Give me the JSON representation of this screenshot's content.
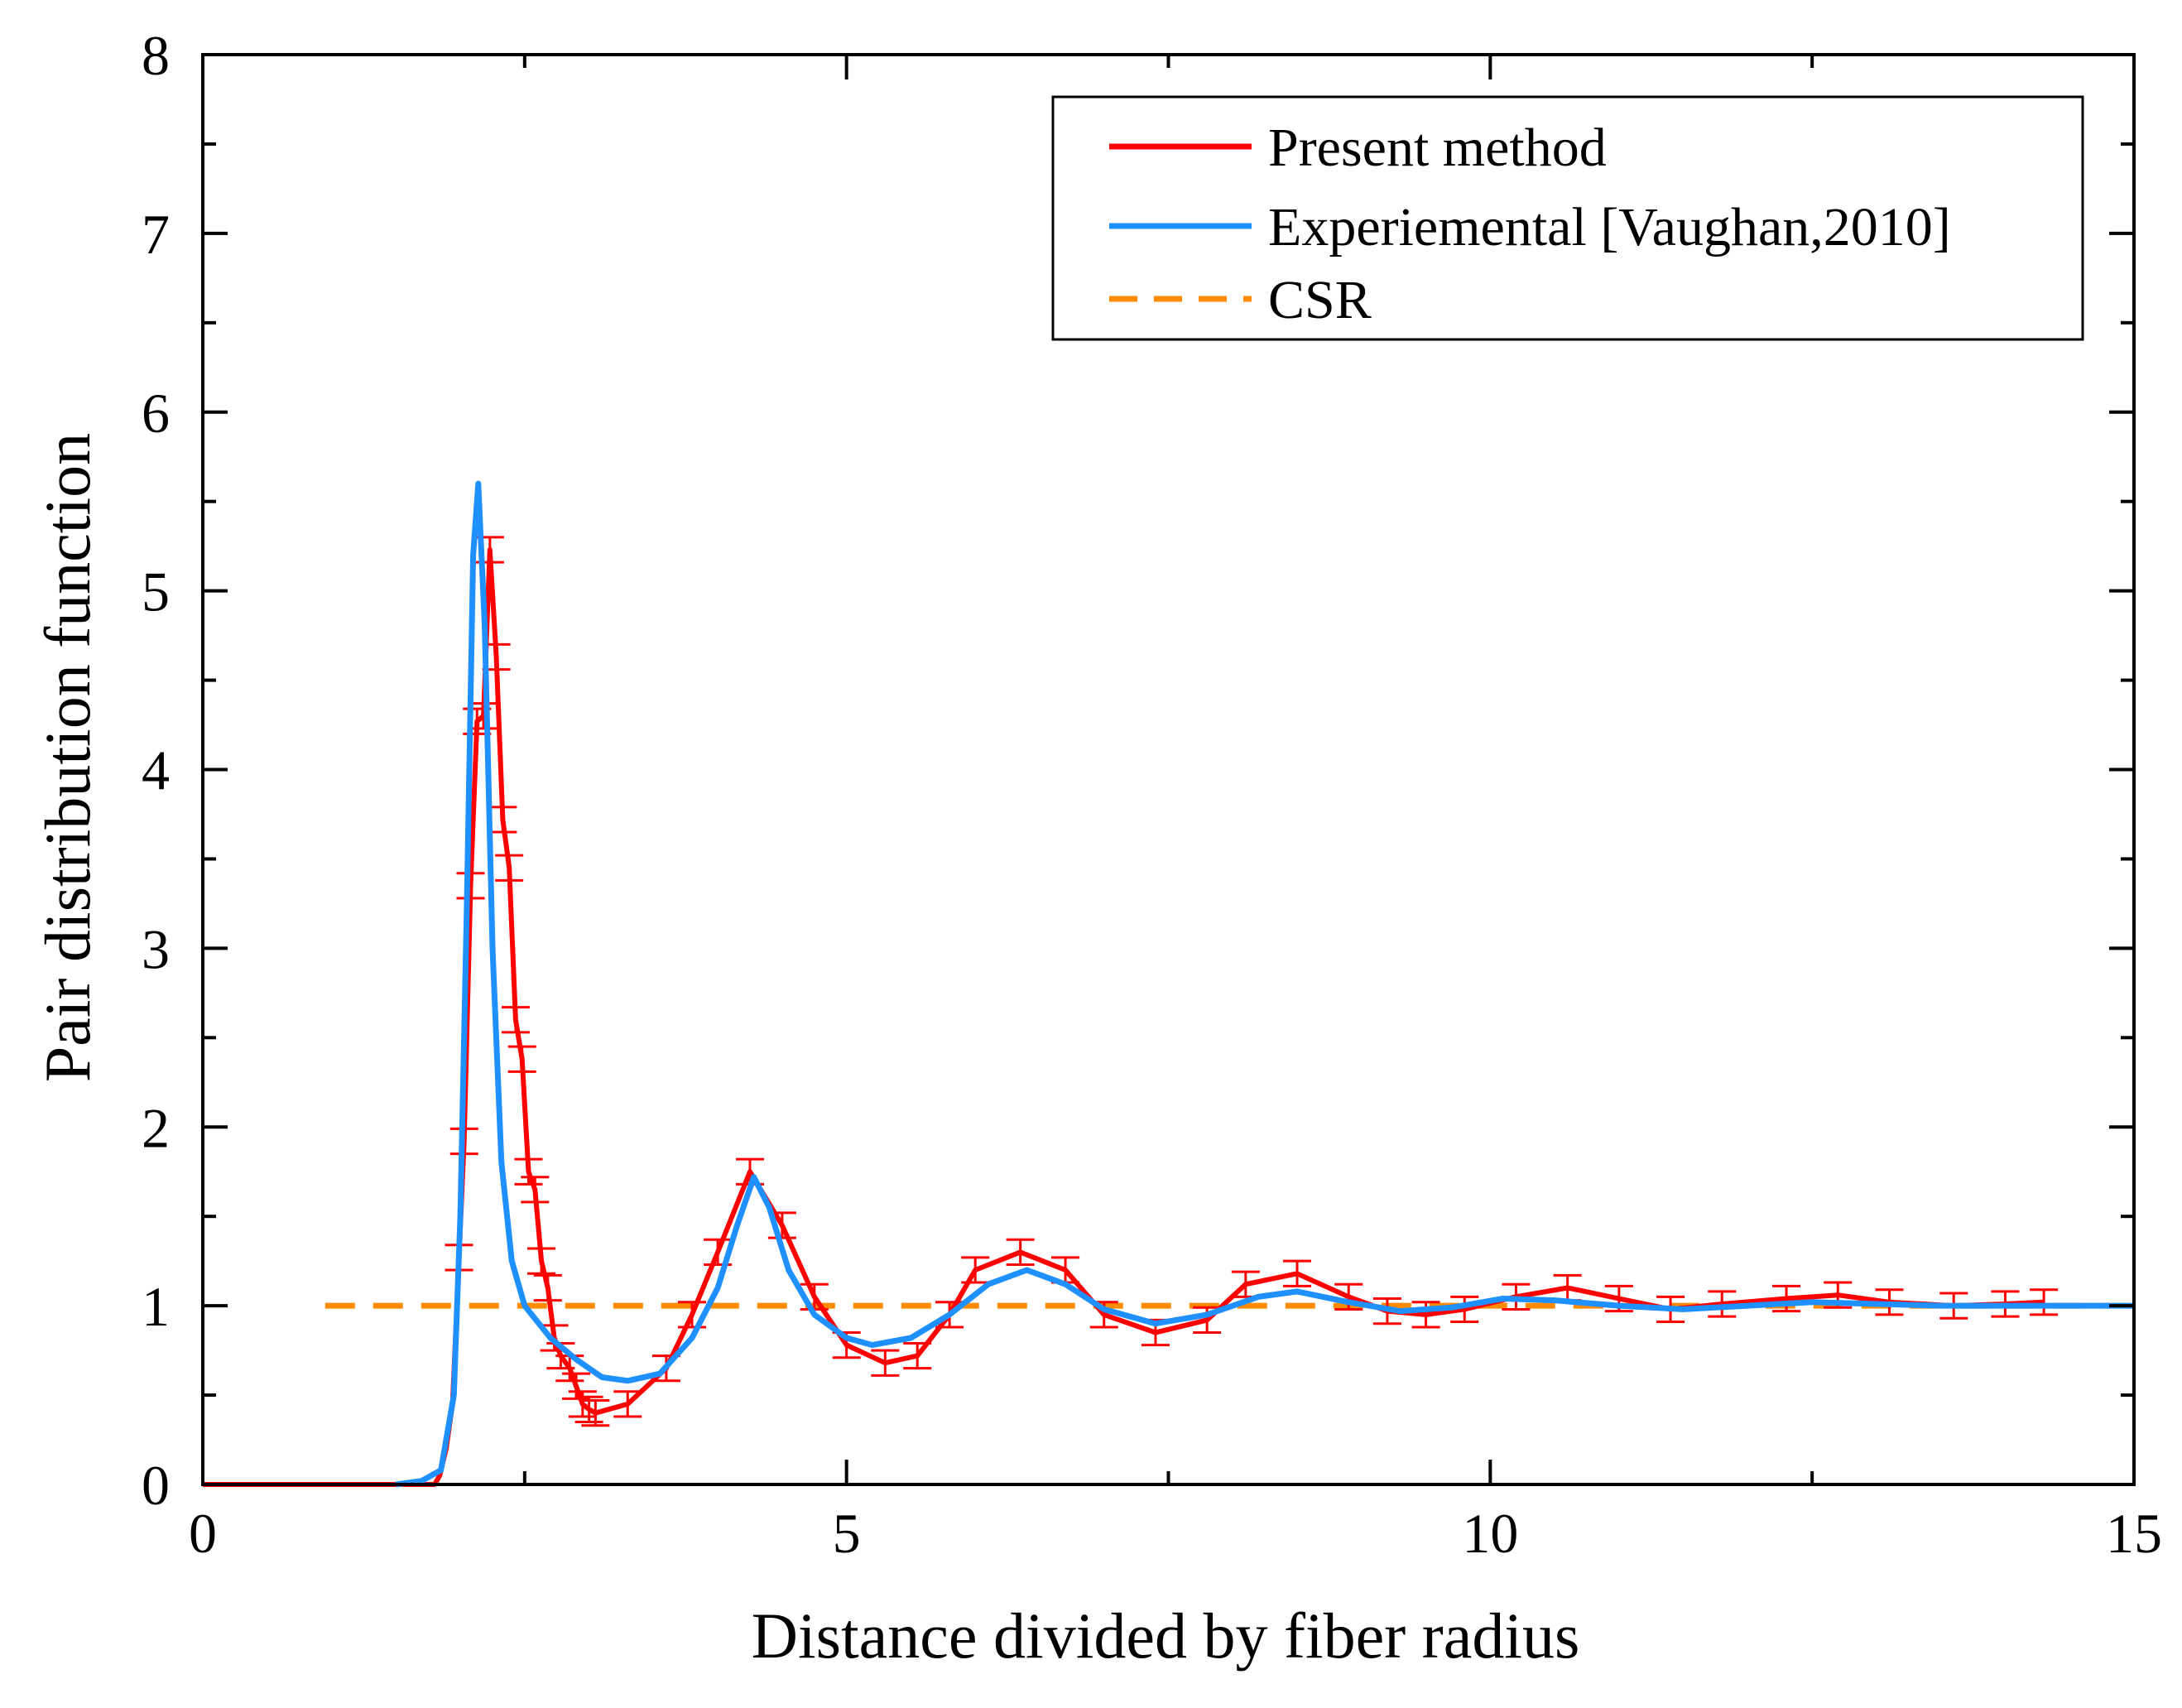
{
  "chart_data": {
    "type": "line",
    "title": "",
    "xlabel": "Distance divided by fiber radius",
    "ylabel": "Pair distribution function",
    "xlim": [
      0,
      15
    ],
    "ylim": [
      0,
      8
    ],
    "xticks": [
      0,
      5,
      10,
      15
    ],
    "yticks": [
      0,
      1,
      2,
      3,
      4,
      5,
      6,
      7,
      8
    ],
    "x_minor_step": 2.5,
    "y_minor_step": 0.5,
    "grid": false,
    "legend_position": "top-right",
    "legend": [
      {
        "name": "Present method",
        "color": "#ff0000",
        "style": "solid"
      },
      {
        "name": "Experiemental [Vaughan,2010]",
        "color": "#1e90ff",
        "style": "solid"
      },
      {
        "name": "CSR",
        "color": "#ff8c00",
        "style": "dashed"
      }
    ],
    "series": [
      {
        "name": "Present method",
        "color": "#ff0000",
        "error_bar_halfwidth": 0.07,
        "points": [
          [
            0.0,
            0.0
          ],
          [
            1.8,
            0.0
          ],
          [
            1.84,
            0.05
          ],
          [
            1.89,
            0.2
          ],
          [
            1.94,
            0.45
          ],
          [
            1.99,
            1.27
          ],
          [
            2.03,
            1.92
          ],
          [
            2.08,
            3.35
          ],
          [
            2.13,
            4.27
          ],
          [
            2.18,
            4.3
          ],
          [
            2.23,
            5.23
          ],
          [
            2.28,
            4.63
          ],
          [
            2.33,
            3.72
          ],
          [
            2.38,
            3.45
          ],
          [
            2.43,
            2.6
          ],
          [
            2.48,
            2.38
          ],
          [
            2.53,
            1.75
          ],
          [
            2.58,
            1.65
          ],
          [
            2.63,
            1.25
          ],
          [
            2.68,
            1.1
          ],
          [
            2.73,
            0.82
          ],
          [
            2.78,
            0.72
          ],
          [
            2.85,
            0.65
          ],
          [
            2.9,
            0.55
          ],
          [
            2.95,
            0.45
          ],
          [
            3.0,
            0.42
          ],
          [
            3.05,
            0.4
          ],
          [
            3.3,
            0.45
          ],
          [
            3.6,
            0.65
          ],
          [
            3.8,
            0.95
          ],
          [
            4.0,
            1.3
          ],
          [
            4.25,
            1.75
          ],
          [
            4.5,
            1.45
          ],
          [
            4.75,
            1.05
          ],
          [
            5.0,
            0.78
          ],
          [
            5.3,
            0.68
          ],
          [
            5.55,
            0.72
          ],
          [
            5.8,
            0.95
          ],
          [
            6.0,
            1.2
          ],
          [
            6.35,
            1.3
          ],
          [
            6.7,
            1.2
          ],
          [
            7.0,
            0.95
          ],
          [
            7.4,
            0.85
          ],
          [
            7.8,
            0.92
          ],
          [
            8.1,
            1.12
          ],
          [
            8.5,
            1.18
          ],
          [
            8.9,
            1.05
          ],
          [
            9.2,
            0.97
          ],
          [
            9.5,
            0.95
          ],
          [
            9.8,
            0.98
          ],
          [
            10.2,
            1.05
          ],
          [
            10.6,
            1.1
          ],
          [
            11.0,
            1.04
          ],
          [
            11.4,
            0.98
          ],
          [
            11.8,
            1.01
          ],
          [
            12.3,
            1.04
          ],
          [
            12.7,
            1.06
          ],
          [
            13.1,
            1.02
          ],
          [
            13.6,
            1.0
          ],
          [
            14.0,
            1.01
          ],
          [
            14.3,
            1.02
          ]
        ]
      },
      {
        "name": "Experiemental [Vaughan,2010]",
        "color": "#1e90ff",
        "points": [
          [
            1.5,
            0.0
          ],
          [
            1.7,
            0.02
          ],
          [
            1.85,
            0.08
          ],
          [
            1.95,
            0.5
          ],
          [
            2.0,
            1.5
          ],
          [
            2.05,
            3.2
          ],
          [
            2.1,
            5.2
          ],
          [
            2.14,
            5.6
          ],
          [
            2.19,
            4.8
          ],
          [
            2.25,
            3.0
          ],
          [
            2.32,
            1.8
          ],
          [
            2.4,
            1.25
          ],
          [
            2.5,
            1.0
          ],
          [
            2.7,
            0.82
          ],
          [
            2.9,
            0.7
          ],
          [
            3.1,
            0.6
          ],
          [
            3.3,
            0.58
          ],
          [
            3.55,
            0.62
          ],
          [
            3.8,
            0.82
          ],
          [
            4.0,
            1.1
          ],
          [
            4.15,
            1.45
          ],
          [
            4.28,
            1.72
          ],
          [
            4.4,
            1.55
          ],
          [
            4.55,
            1.2
          ],
          [
            4.75,
            0.95
          ],
          [
            5.0,
            0.82
          ],
          [
            5.2,
            0.78
          ],
          [
            5.5,
            0.82
          ],
          [
            5.8,
            0.95
          ],
          [
            6.1,
            1.12
          ],
          [
            6.4,
            1.2
          ],
          [
            6.7,
            1.12
          ],
          [
            7.0,
            0.98
          ],
          [
            7.4,
            0.9
          ],
          [
            7.8,
            0.95
          ],
          [
            8.2,
            1.05
          ],
          [
            8.5,
            1.08
          ],
          [
            8.9,
            1.02
          ],
          [
            9.3,
            0.97
          ],
          [
            9.7,
            0.99
          ],
          [
            10.1,
            1.04
          ],
          [
            10.5,
            1.03
          ],
          [
            11.0,
            1.0
          ],
          [
            11.5,
            0.98
          ],
          [
            12.0,
            1.0
          ],
          [
            12.5,
            1.02
          ],
          [
            13.0,
            1.01
          ],
          [
            13.5,
            1.0
          ],
          [
            14.0,
            1.0
          ],
          [
            14.5,
            1.0
          ],
          [
            15.0,
            1.0
          ]
        ]
      },
      {
        "name": "CSR",
        "color": "#ff8c00",
        "style": "dashed",
        "points": [
          [
            0.95,
            1.0
          ],
          [
            15.0,
            1.0
          ]
        ]
      }
    ]
  }
}
